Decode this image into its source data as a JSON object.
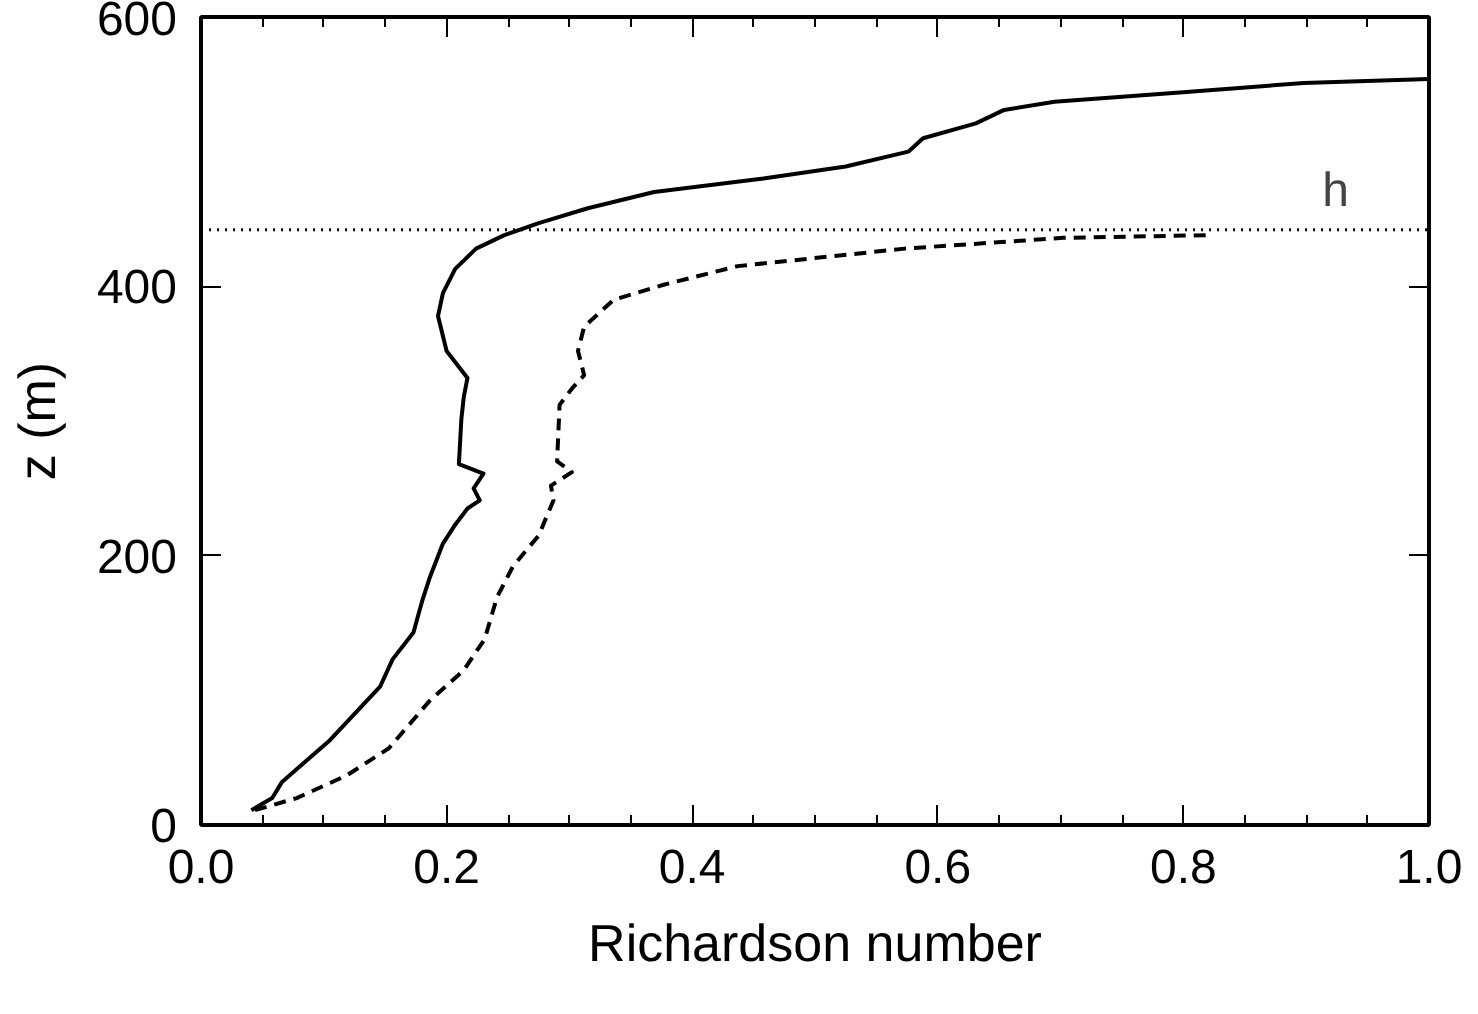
{
  "chart_data": {
    "type": "line",
    "xlabel": "Richardson number",
    "ylabel": "z (m)",
    "xlim": [
      0.0,
      1.0
    ],
    "xticks": [
      {
        "value": 0.0,
        "label": "0.0"
      },
      0.2,
      0.4,
      0.6,
      0.8,
      {
        "value": 1.0,
        "label": "1.0"
      }
    ],
    "ylim": [
      0,
      600
    ],
    "yticks": [
      0,
      200,
      400,
      600
    ],
    "grid": false,
    "marker": "none",
    "series": [
      {
        "color": "#000000",
        "line_style": "solid",
        "x": [
          0.041,
          0.058,
          0.066,
          0.105,
          0.146,
          0.156,
          0.173,
          0.18,
          0.186,
          0.197,
          0.207,
          0.217,
          0.227,
          0.222,
          0.23,
          0.21,
          0.212,
          0.214,
          0.217,
          0.2,
          0.193,
          0.197,
          0.207,
          0.224,
          0.247,
          0.275,
          0.315,
          0.369,
          0.458,
          0.525,
          0.576,
          0.588,
          0.631,
          0.654,
          0.695,
          0.797,
          0.898,
          1.0
        ],
        "values": [
          11,
          20,
          32,
          63,
          103,
          123,
          143,
          166,
          183,
          209,
          223,
          235,
          241,
          250,
          261,
          268,
          301,
          318,
          332,
          352,
          378,
          395,
          413,
          428,
          438,
          447,
          458,
          470,
          480,
          489,
          500,
          510,
          521,
          531,
          537,
          544,
          551,
          554
        ]
      },
      {
        "color": "#000000",
        "line_style": "dashed",
        "x": [
          0.044,
          0.078,
          0.119,
          0.153,
          0.186,
          0.214,
          0.231,
          0.241,
          0.254,
          0.275,
          0.287,
          0.285,
          0.302,
          0.29,
          0.292,
          0.302,
          0.312,
          0.307,
          0.312,
          0.336,
          0.376,
          0.437,
          0.573,
          0.702,
          0.82
        ],
        "values": [
          11,
          20,
          37,
          57,
          92,
          115,
          138,
          169,
          192,
          215,
          241,
          252,
          262,
          270,
          312,
          324,
          334,
          352,
          370,
          390,
          401,
          415,
          428,
          436,
          438
        ]
      }
    ],
    "ref_lines": [
      {
        "axis": "y",
        "value": 442,
        "label": "h",
        "line_style": "dotted",
        "color": "#000000"
      }
    ]
  }
}
